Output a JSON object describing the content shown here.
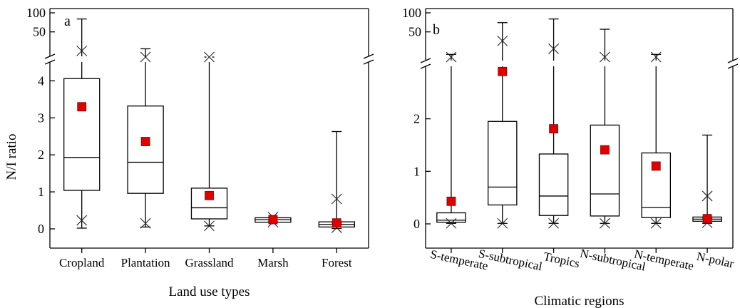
{
  "chart_data": [
    {
      "panel_label": "a",
      "type": "box",
      "xlabel": "Land use types",
      "ylabel": "N/I ratio",
      "upper_ticks": [
        "50",
        "100"
      ],
      "lower_ticks": [
        "0",
        "1",
        "2",
        "3",
        "4"
      ],
      "axis_break": true,
      "categories": [
        {
          "name": "Cropland",
          "whisker_low": 0.02,
          "q1": 1.04,
          "median": 1.93,
          "q3": 4.06,
          "whisker_high": 80,
          "p_low": 0.23,
          "p_high": 25,
          "mean": 3.3
        },
        {
          "name": "Plantation",
          "whisker_low": 0.05,
          "q1": 0.96,
          "median": 1.8,
          "q3": 3.32,
          "whisker_high": 27,
          "p_low": 0.15,
          "p_high": 20,
          "mean": 2.36
        },
        {
          "name": "Grassland",
          "whisker_low": 0.08,
          "q1": 0.27,
          "median": 0.57,
          "q3": 1.1,
          "whisker_high": 20,
          "p_low": 0.08,
          "p_high": 20,
          "mean": 0.9
        },
        {
          "name": "Marsh",
          "whisker_low": 0.18,
          "q1": 0.18,
          "median": 0.25,
          "q3": 0.3,
          "whisker_high": 0.3,
          "p_low": 0.18,
          "p_high": 0.32,
          "mean": 0.25
        },
        {
          "name": "Forest",
          "whisker_low": 0.01,
          "q1": 0.05,
          "median": 0.12,
          "q3": 0.19,
          "whisker_high": 2.63,
          "p_low": 0.03,
          "p_high": 0.81,
          "mean": 0.16
        }
      ]
    },
    {
      "panel_label": "b",
      "type": "box",
      "xlabel": "Climatic regions",
      "ylabel": "",
      "upper_ticks": [
        "50",
        "100"
      ],
      "lower_ticks": [
        "0",
        "1",
        "2"
      ],
      "axis_break": true,
      "categories": [
        {
          "name": "S-temperate",
          "whisker_low": 0.01,
          "q1": 0.03,
          "median": 0.07,
          "q3": 0.21,
          "whisker_high": 22,
          "p_low": 0.01,
          "p_high": 20,
          "mean": 0.43
        },
        {
          "name": "S-subtropical",
          "whisker_low": 0.01,
          "q1": 0.36,
          "median": 0.7,
          "q3": 1.95,
          "whisker_high": 70,
          "p_low": 0.01,
          "p_high": 36,
          "mean": 2.9
        },
        {
          "name": "Tropics",
          "whisker_low": 0.01,
          "q1": 0.16,
          "median": 0.53,
          "q3": 1.33,
          "whisker_high": 80,
          "p_low": 0.01,
          "p_high": 27,
          "mean": 1.81
        },
        {
          "name": "N-subtropical",
          "whisker_low": 0.01,
          "q1": 0.15,
          "median": 0.57,
          "q3": 1.88,
          "whisker_high": 55,
          "p_low": 0.01,
          "p_high": 20,
          "mean": 1.41
        },
        {
          "name": "N-temperate",
          "whisker_low": 0.01,
          "q1": 0.12,
          "median": 0.31,
          "q3": 1.35,
          "whisker_high": 22,
          "p_low": 0.01,
          "p_high": 20,
          "mean": 1.1
        },
        {
          "name": "N-polar",
          "whisker_low": 0.01,
          "q1": 0.05,
          "median": 0.09,
          "q3": 0.13,
          "whisker_high": 1.69,
          "p_low": 0.02,
          "p_high": 0.53,
          "mean": 0.1
        }
      ]
    }
  ],
  "colors": {
    "mean_marker": "#e00000",
    "outline": "#000000"
  }
}
